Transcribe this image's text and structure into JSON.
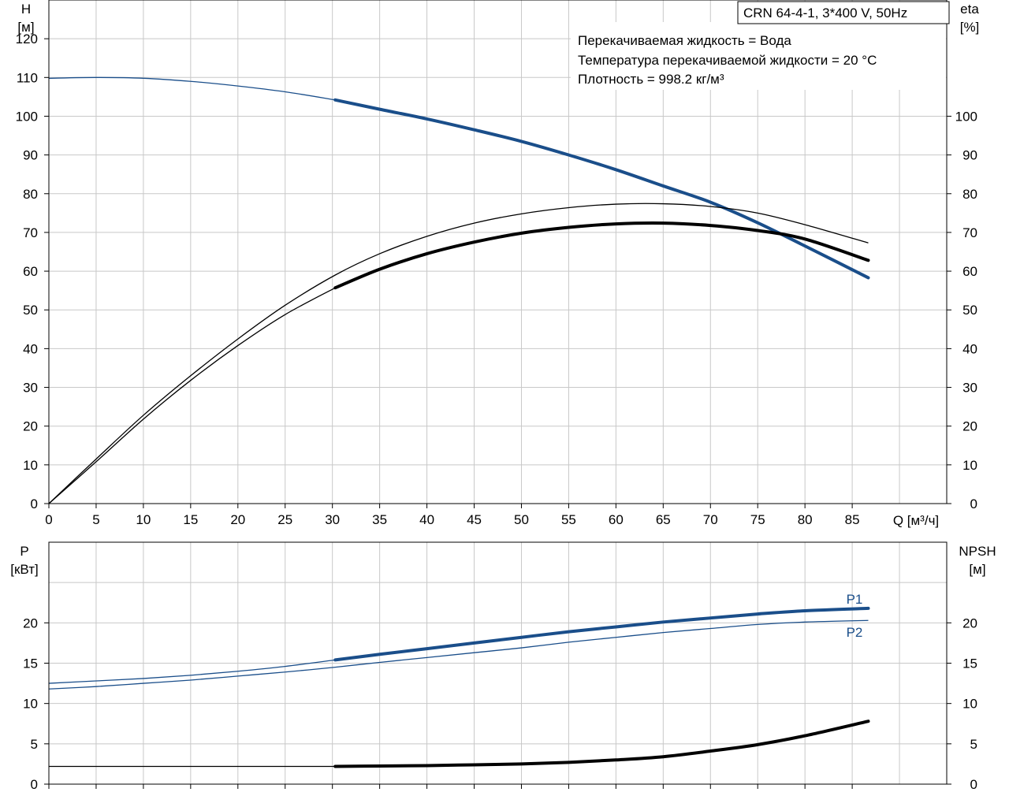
{
  "chart_data": [
    {
      "type": "line",
      "title": "CRN 64-4-1, 3*400 V, 50Hz",
      "xlabel": "Q [м³/ч]",
      "x_ticks": [
        0,
        5,
        10,
        15,
        20,
        25,
        30,
        35,
        40,
        45,
        50,
        55,
        60,
        65,
        70,
        75,
        80,
        85
      ],
      "xlim": [
        0,
        95
      ],
      "ylabel_left": [
        "H",
        "[м]"
      ],
      "ylim_left": [
        0,
        130
      ],
      "y_ticks_left": [
        0,
        10,
        20,
        30,
        40,
        50,
        60,
        70,
        80,
        90,
        100,
        110,
        120
      ],
      "ylabel_right": [
        "eta",
        "[%]"
      ],
      "ylim_right": [
        0,
        130
      ],
      "y_ticks_right": [
        0,
        10,
        20,
        30,
        40,
        50,
        60,
        70,
        80,
        90,
        100
      ],
      "annotations": [
        "Перекачиваемая жидкость = Вода",
        "Температура перекачиваемой жидкости = 20 °C",
        "Плотность = 998.2 кг/м³"
      ],
      "series": [
        {
          "id": "H",
          "color": "#1a4e8a",
          "bold_from": 30.3,
          "x": [
            0,
            5,
            10,
            15,
            20,
            25,
            30.3,
            35,
            40,
            45,
            50,
            55,
            60,
            65,
            70,
            75,
            80,
            86.7
          ],
          "y": [
            109.8,
            110,
            109.8,
            109,
            107.8,
            106.3,
            104.2,
            101.8,
            99.3,
            96.5,
            93.5,
            90,
            86.2,
            82,
            77.8,
            72.5,
            66.5,
            58.3
          ]
        },
        {
          "id": "eta_upper",
          "color": "#000000",
          "bold_from": 86.7,
          "x": [
            0,
            5,
            10,
            15,
            20,
            25,
            30.3,
            35,
            40,
            45,
            50,
            55,
            60,
            65,
            70,
            75,
            80,
            86.7
          ],
          "y": [
            0,
            11.5,
            22.8,
            33,
            42.5,
            51.2,
            59,
            64.5,
            69,
            72.4,
            74.8,
            76.4,
            77.3,
            77.4,
            76.7,
            75,
            72,
            67.3
          ]
        },
        {
          "id": "eta",
          "color": "#000000",
          "bold_from": 30.3,
          "x": [
            0,
            5,
            10,
            15,
            20,
            25,
            30.3,
            35,
            40,
            45,
            50,
            55,
            60,
            65,
            70,
            75,
            80,
            86.7
          ],
          "y": [
            0,
            10.8,
            21.8,
            31.8,
            40.8,
            48.8,
            55.7,
            60.5,
            64.5,
            67.5,
            69.8,
            71.3,
            72.2,
            72.4,
            71.8,
            70.5,
            68.3,
            62.8
          ]
        }
      ]
    },
    {
      "type": "line",
      "xlim": [
        0,
        95
      ],
      "x_ticks": [
        0,
        5,
        10,
        15,
        20,
        25,
        30,
        35,
        40,
        45,
        50,
        55,
        60,
        65,
        70,
        75,
        80,
        85
      ],
      "ylabel_left": [
        "P",
        "[кВт]"
      ],
      "ylim_left": [
        0,
        30
      ],
      "y_ticks_left": [
        0,
        5,
        10,
        15,
        20
      ],
      "ylabel_right": [
        "NPSH",
        "[м]"
      ],
      "ylim_right": [
        0,
        30
      ],
      "y_ticks_right": [
        0,
        5,
        10,
        15,
        20
      ],
      "series": [
        {
          "id": "P1",
          "name": "P1",
          "color": "#1a4e8a",
          "bold_from": 30.3,
          "x": [
            0,
            5,
            10,
            15,
            20,
            25,
            30.3,
            35,
            40,
            45,
            50,
            55,
            60,
            65,
            70,
            75,
            80,
            86.7
          ],
          "y": [
            12.5,
            12.8,
            13.1,
            13.5,
            14,
            14.6,
            15.4,
            16.1,
            16.8,
            17.5,
            18.2,
            18.9,
            19.5,
            20.1,
            20.6,
            21.1,
            21.5,
            21.8
          ]
        },
        {
          "id": "P2",
          "name": "P2",
          "color": "#1a4e8a",
          "bold_from": 86.7,
          "x": [
            0,
            5,
            10,
            15,
            20,
            25,
            30.3,
            35,
            40,
            45,
            50,
            55,
            60,
            65,
            70,
            75,
            80,
            86.7
          ],
          "y": [
            11.8,
            12.1,
            12.5,
            12.9,
            13.4,
            13.9,
            14.5,
            15.1,
            15.7,
            16.3,
            16.9,
            17.6,
            18.2,
            18.8,
            19.3,
            19.8,
            20.1,
            20.3
          ]
        },
        {
          "id": "NPSH",
          "color": "#000000",
          "bold_from": 30.3,
          "x": [
            0,
            5,
            10,
            15,
            20,
            25,
            30.3,
            35,
            40,
            45,
            50,
            55,
            60,
            65,
            70,
            75,
            80,
            86.7
          ],
          "y": [
            2.2,
            2.2,
            2.2,
            2.2,
            2.2,
            2.2,
            2.2,
            2.25,
            2.3,
            2.4,
            2.5,
            2.7,
            3,
            3.4,
            4.1,
            4.9,
            6,
            7.8
          ]
        }
      ]
    }
  ]
}
